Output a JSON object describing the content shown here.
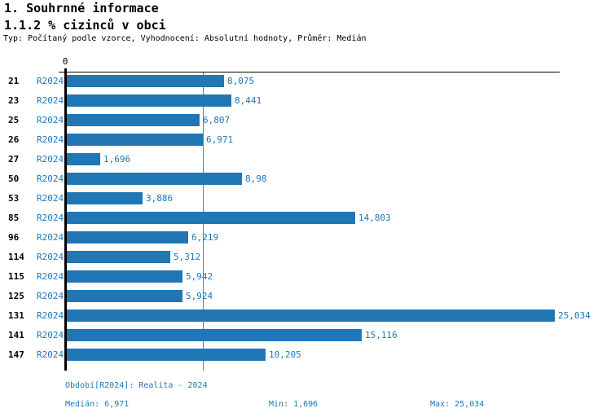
{
  "header": {
    "title": "1. Souhrnné informace",
    "subtitle": "1.1.2 % cizinců v obci",
    "meta": "Typ: Počítaný podle vzorce, Vyhodnocení: Absolutní hodnoty, Průměr: Medián"
  },
  "chart_data": {
    "type": "bar",
    "orientation": "horizontal",
    "title": "1.1.2 % cizinců v obci",
    "xlabel": "",
    "ylabel": "",
    "grid": false,
    "legend_position": "none",
    "axis_origin_label": "0",
    "xlim": [
      0,
      25.034
    ],
    "series_name": "R2024",
    "categories": [
      "21",
      "23",
      "25",
      "26",
      "27",
      "50",
      "53",
      "85",
      "96",
      "114",
      "115",
      "125",
      "131",
      "141",
      "147"
    ],
    "values": [
      8.075,
      8.441,
      6.807,
      6.971,
      1.696,
      8.98,
      3.886,
      14.803,
      6.219,
      5.312,
      5.942,
      5.924,
      25.034,
      15.116,
      10.205
    ],
    "value_labels": [
      "8,075",
      "8,441",
      "6,807",
      "6,971",
      "1,696",
      "8,98",
      "3,886",
      "14,803",
      "6,219",
      "5,312",
      "5,942",
      "5,924",
      "25,034",
      "15,116",
      "10,205"
    ],
    "median_value": 6.971,
    "bar_color": "#2077b4",
    "median_line_color": "#3d87ba",
    "label_color": "#1f77b4"
  },
  "footer": {
    "period_line": "Období[R2024]: Realita - 2024",
    "median": "Medián: 6,971",
    "min": "Min: 1,696",
    "max": "Max: 25,034"
  }
}
